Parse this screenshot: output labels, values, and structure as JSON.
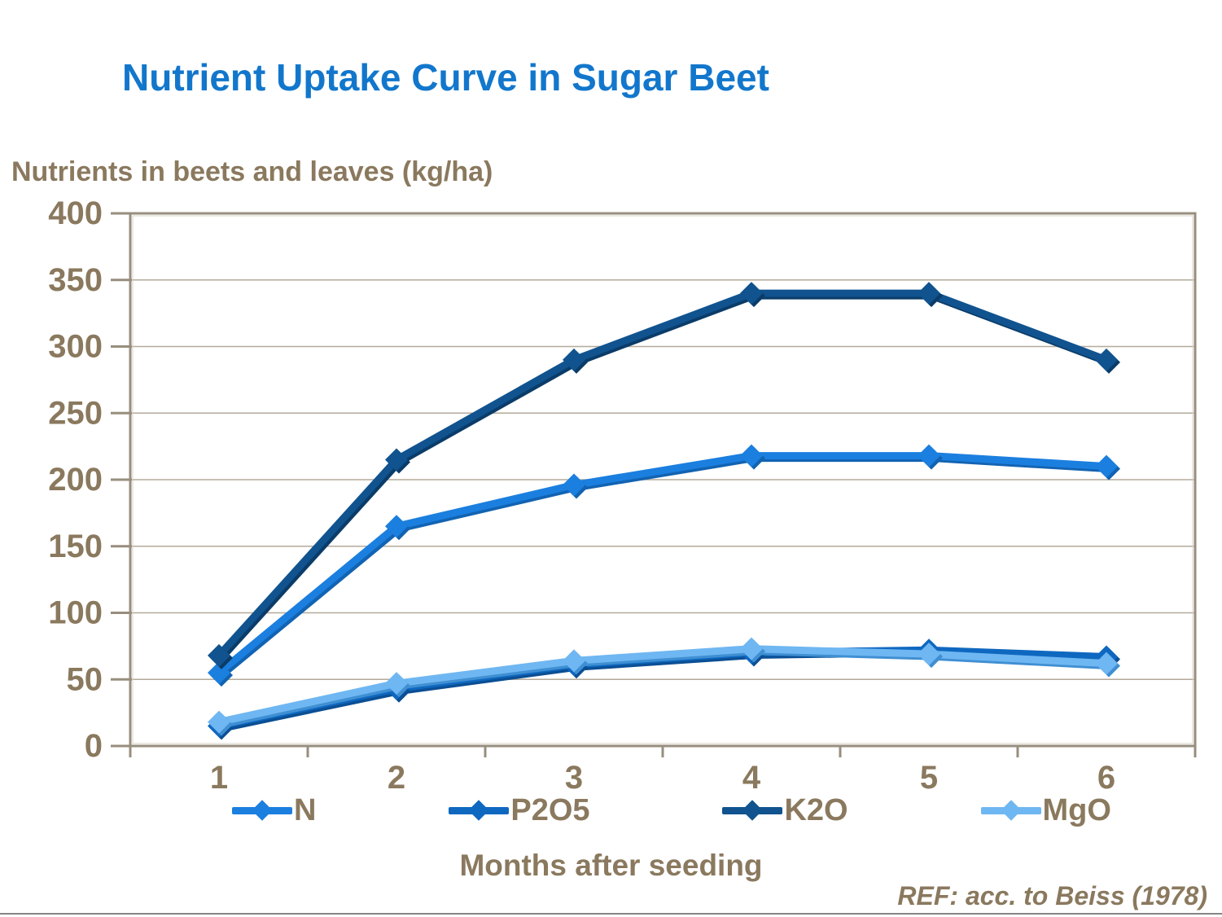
{
  "page": {
    "title": "Nutrient Uptake Curve in Sugar Beet",
    "y_axis_header": "Nutrients in beets and leaves (kg/ha)",
    "x_axis_title": "Months after seeding",
    "reference": "REF: acc. to Beiss (1978)"
  },
  "colors": {
    "title_blue": "#1277cc",
    "label_brown": "#8a795e",
    "gridline": "#b3aa9a",
    "frame": "#978e7e",
    "frame_inner": "#d9d3c6",
    "bottom_rule": "#858585",
    "background": "#ffffff"
  },
  "chart_data": {
    "type": "line",
    "title": "Nutrient Uptake Curve in Sugar Beet",
    "xlabel": "Months after seeding",
    "ylabel": "Nutrients in beets and leaves (kg/ha)",
    "x": [
      "1",
      "2",
      "3",
      "4",
      "5",
      "6"
    ],
    "ylim": [
      0,
      400
    ],
    "yticks": [
      0,
      50,
      100,
      150,
      200,
      250,
      300,
      350,
      400
    ],
    "grid": true,
    "legend_position": "bottom",
    "series": [
      {
        "name": "N",
        "color": "#1b7fdf",
        "shadow": "#1263b2",
        "values": [
          55,
          165,
          196,
          218,
          218,
          210
        ]
      },
      {
        "name": "P2O5",
        "color": "#0f68c0",
        "shadow": "#0b4f94",
        "values": [
          15,
          43,
          61,
          70,
          72,
          67
        ]
      },
      {
        "name": "K2O",
        "color": "#10538f",
        "shadow": "#0b3c69",
        "values": [
          68,
          215,
          290,
          340,
          340,
          290
        ]
      },
      {
        "name": "MgO",
        "color": "#6fb7f2",
        "shadow": "#3f8fd2",
        "values": [
          18,
          47,
          64,
          73,
          69,
          62
        ]
      }
    ]
  }
}
